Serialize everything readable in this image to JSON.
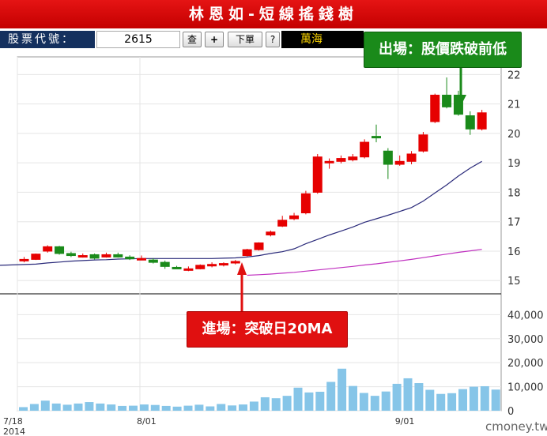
{
  "header": {
    "title": "林恩如-短線搖錢樹"
  },
  "toolbar": {
    "stock_label": "股票代號：",
    "stock_code": "2615",
    "query_label": "查",
    "add_label": "+",
    "next_label": "下單",
    "help_label": "?",
    "stock_name": "萬海"
  },
  "annotations": {
    "exit_label": "出場：股價跌破前低",
    "entry_label": "進場：突破日20MA"
  },
  "watermark": "cmoney.tw",
  "colors": {
    "up": "#e60000",
    "down": "#1a8a1a",
    "ma20": "#2a2a7a",
    "ma60": "#c030c0",
    "volume": "#86c5e8",
    "volume_last": "#5aaee0"
  },
  "chart_data": {
    "type": "candlestick",
    "x_tick_labels": [
      "7/18\n2014",
      "8/01",
      "9/01"
    ],
    "x_tick_positions": [
      0,
      10,
      32
    ],
    "price_axis": {
      "ticks": [
        15,
        16,
        17,
        18,
        19,
        20,
        21,
        22
      ],
      "ylim": [
        14.55,
        22.6
      ]
    },
    "volume_axis": {
      "ticks": [
        "0",
        "10,000",
        "20,000",
        "30,000",
        "40,000"
      ],
      "tick_values": [
        0,
        10000,
        20000,
        30000,
        40000
      ],
      "ylim": [
        0,
        48000
      ]
    },
    "candles": [
      {
        "o": 15.72,
        "h": 15.8,
        "l": 15.62,
        "c": 15.72
      },
      {
        "o": 15.72,
        "h": 15.92,
        "l": 15.7,
        "c": 15.9
      },
      {
        "o": 16.0,
        "h": 16.2,
        "l": 15.95,
        "c": 16.15
      },
      {
        "o": 16.15,
        "h": 16.18,
        "l": 15.88,
        "c": 15.92
      },
      {
        "o": 15.92,
        "h": 15.98,
        "l": 15.8,
        "c": 15.85
      },
      {
        "o": 15.85,
        "h": 15.92,
        "l": 15.78,
        "c": 15.85
      },
      {
        "o": 15.88,
        "h": 15.92,
        "l": 15.72,
        "c": 15.76
      },
      {
        "o": 15.8,
        "h": 15.95,
        "l": 15.78,
        "c": 15.88
      },
      {
        "o": 15.88,
        "h": 15.95,
        "l": 15.78,
        "c": 15.8
      },
      {
        "o": 15.8,
        "h": 15.86,
        "l": 15.7,
        "c": 15.74
      },
      {
        "o": 15.75,
        "h": 15.85,
        "l": 15.7,
        "c": 15.75
      },
      {
        "o": 15.7,
        "h": 15.76,
        "l": 15.58,
        "c": 15.62
      },
      {
        "o": 15.62,
        "h": 15.68,
        "l": 15.4,
        "c": 15.48
      },
      {
        "o": 15.45,
        "h": 15.5,
        "l": 15.4,
        "c": 15.42
      },
      {
        "o": 15.4,
        "h": 15.48,
        "l": 15.32,
        "c": 15.4
      },
      {
        "o": 15.4,
        "h": 15.55,
        "l": 15.38,
        "c": 15.52
      },
      {
        "o": 15.5,
        "h": 15.62,
        "l": 15.45,
        "c": 15.55
      },
      {
        "o": 15.55,
        "h": 15.62,
        "l": 15.48,
        "c": 15.58
      },
      {
        "o": 15.6,
        "h": 15.7,
        "l": 15.55,
        "c": 15.65
      },
      {
        "o": 15.85,
        "h": 16.08,
        "l": 15.82,
        "c": 16.05
      },
      {
        "o": 16.05,
        "h": 16.3,
        "l": 16.02,
        "c": 16.28
      },
      {
        "o": 16.55,
        "h": 16.7,
        "l": 16.5,
        "c": 16.65
      },
      {
        "o": 16.85,
        "h": 17.2,
        "l": 16.82,
        "c": 17.05
      },
      {
        "o": 17.1,
        "h": 17.3,
        "l": 17.05,
        "c": 17.2
      },
      {
        "o": 17.3,
        "h": 18.05,
        "l": 17.25,
        "c": 17.95
      },
      {
        "o": 18.0,
        "h": 19.3,
        "l": 17.95,
        "c": 19.2
      },
      {
        "o": 19.0,
        "h": 19.15,
        "l": 18.8,
        "c": 19.05
      },
      {
        "o": 19.05,
        "h": 19.25,
        "l": 18.98,
        "c": 19.15
      },
      {
        "o": 19.1,
        "h": 19.3,
        "l": 19.05,
        "c": 19.2
      },
      {
        "o": 19.2,
        "h": 19.8,
        "l": 19.15,
        "c": 19.7
      },
      {
        "o": 19.9,
        "h": 20.3,
        "l": 19.7,
        "c": 19.85
      },
      {
        "o": 19.4,
        "h": 19.5,
        "l": 18.45,
        "c": 18.95
      },
      {
        "o": 18.95,
        "h": 19.25,
        "l": 18.9,
        "c": 19.05
      },
      {
        "o": 19.05,
        "h": 19.4,
        "l": 18.95,
        "c": 19.3
      },
      {
        "o": 19.4,
        "h": 20.05,
        "l": 19.35,
        "c": 19.95
      },
      {
        "o": 20.4,
        "h": 21.35,
        "l": 20.35,
        "c": 21.3
      },
      {
        "o": 21.3,
        "h": 21.9,
        "l": 20.85,
        "c": 20.9
      },
      {
        "o": 21.3,
        "h": 21.45,
        "l": 20.6,
        "c": 20.65
      },
      {
        "o": 20.6,
        "h": 20.75,
        "l": 19.95,
        "c": 20.15
      },
      {
        "o": 20.15,
        "h": 20.8,
        "l": 20.1,
        "c": 20.7
      }
    ],
    "ma20": [
      15.52,
      15.56,
      15.6,
      15.63,
      15.66,
      15.68,
      15.7,
      15.71,
      15.73,
      15.74,
      15.75,
      15.75,
      15.75,
      15.75,
      15.75,
      15.75,
      15.75,
      15.76,
      15.77,
      15.8,
      15.85,
      15.92,
      15.98,
      16.08,
      16.25,
      16.4,
      16.55,
      16.68,
      16.82,
      16.98,
      17.1,
      17.22,
      17.35,
      17.48,
      17.7,
      17.98,
      18.25,
      18.55,
      18.82,
      19.05
    ],
    "ma60": [
      null,
      null,
      null,
      null,
      null,
      null,
      null,
      null,
      null,
      null,
      null,
      null,
      null,
      null,
      null,
      null,
      null,
      null,
      null,
      15.18,
      15.2,
      15.22,
      15.25,
      15.28,
      15.32,
      15.36,
      15.4,
      15.44,
      15.48,
      15.53,
      15.57,
      15.62,
      15.67,
      15.72,
      15.78,
      15.84,
      15.9,
      15.96,
      16.01,
      16.06
    ],
    "volume": [
      1500,
      2800,
      4200,
      3000,
      2500,
      3000,
      3600,
      3000,
      2600,
      2000,
      2100,
      2600,
      2400,
      2000,
      1700,
      2100,
      2500,
      1800,
      2800,
      2200,
      2600,
      3800,
      5600,
      5200,
      6200,
      9600,
      7600,
      7900,
      12000,
      17500,
      10300,
      7400,
      6200,
      8000,
      11200,
      13500,
      11500,
      8700,
      7000,
      7300,
      9000,
      10000,
      10200,
      8800,
      9800,
      8300
    ],
    "volume_x_offset": -6
  }
}
